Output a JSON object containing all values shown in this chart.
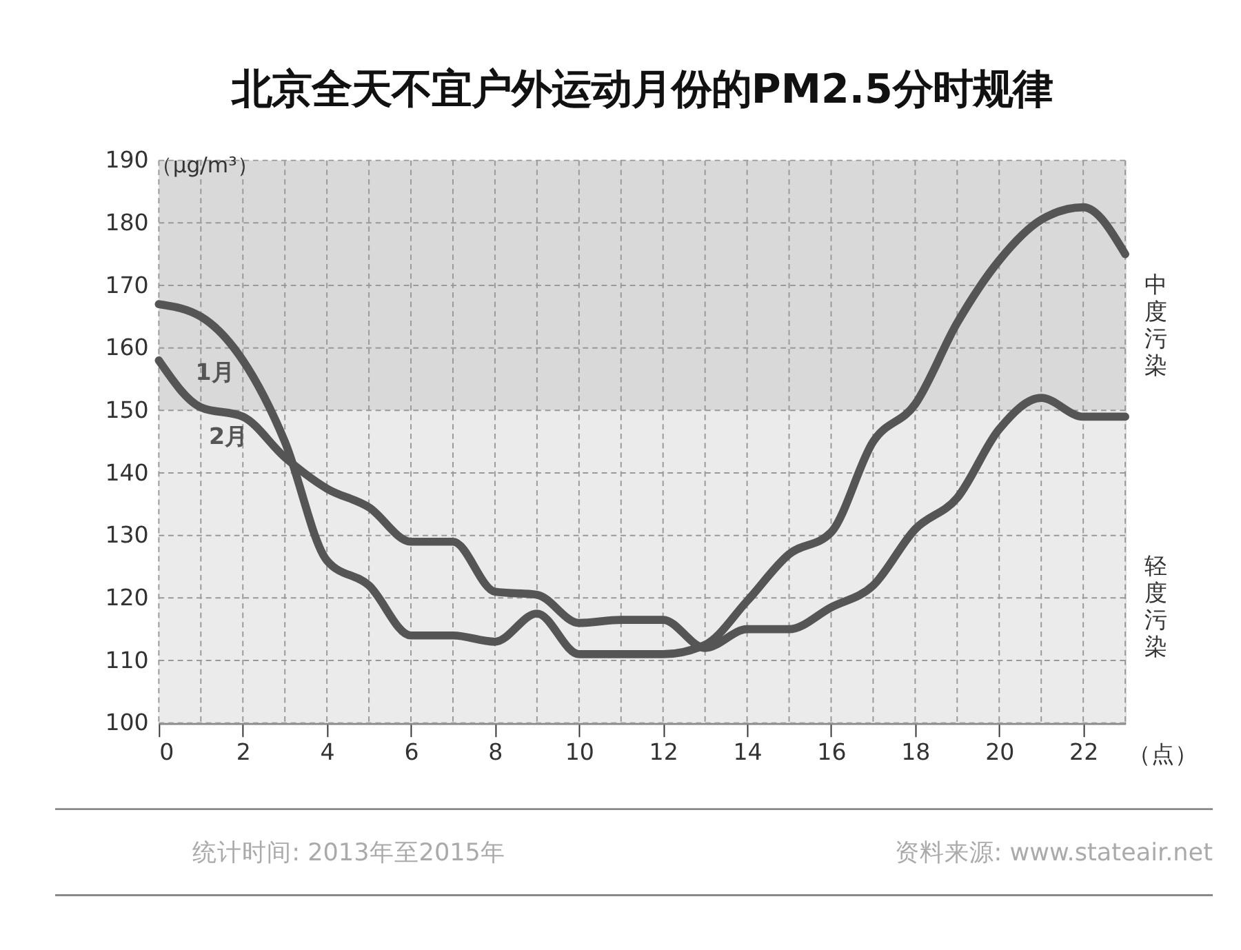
{
  "chart_data": {
    "type": "line",
    "title": "北京全天不宜户外运动月份的PM2.5分时规律",
    "ylabel": "（μg/m³）",
    "xlabel": "（点）",
    "x": [
      0,
      1,
      2,
      3,
      4,
      5,
      6,
      7,
      8,
      9,
      10,
      11,
      12,
      13,
      14,
      15,
      16,
      17,
      18,
      19,
      20,
      21,
      22,
      23
    ],
    "series": [
      {
        "name": "1月",
        "color": "#555555",
        "values": [
          167,
          165,
          158,
          145,
          126,
          122,
          114,
          114,
          113,
          117.5,
          111,
          111,
          111,
          112.5,
          119.5,
          127,
          130.5,
          145,
          151,
          164,
          174,
          180.5,
          182.5,
          175
        ]
      },
      {
        "name": "2月",
        "color": "#555555",
        "values": [
          158,
          150.5,
          149,
          142.5,
          137.5,
          134.5,
          129,
          129,
          121,
          120.5,
          116,
          116.5,
          116.5,
          112,
          115,
          115,
          118.5,
          122,
          131,
          136,
          147,
          152,
          149,
          149
        ]
      }
    ],
    "xlim": [
      0,
      23
    ],
    "ylim": [
      100,
      190
    ],
    "xticks": [
      0,
      {
        "value": 1,
        "label": null
      },
      2,
      {
        "value": 3,
        "label": null
      },
      4,
      {
        "value": 5,
        "label": null
      },
      6,
      {
        "value": 7,
        "label": null
      },
      8,
      {
        "value": 9,
        "label": null
      },
      10,
      {
        "value": 11,
        "label": null
      },
      12,
      {
        "value": 13,
        "label": null
      },
      14,
      {
        "value": 15,
        "label": null
      },
      16,
      {
        "value": 17,
        "label": null
      },
      18,
      {
        "value": 19,
        "label": null
      },
      20,
      {
        "value": 21,
        "label": null
      },
      22,
      {
        "value": 23,
        "label": null
      }
    ],
    "yticks": [
      100,
      110,
      120,
      130,
      140,
      150,
      160,
      170,
      180,
      190
    ],
    "bands": [
      {
        "axis": "y",
        "from": 150,
        "to": 190,
        "label": "中度污染",
        "color": "#d9d9d9"
      },
      {
        "axis": "y",
        "from": 100,
        "to": 150,
        "label": "轻度污染",
        "color": "#ebebeb"
      }
    ],
    "grid": true,
    "legend": false,
    "marker": "none",
    "line_style": "solid",
    "annotations": [
      "统计时间: 2013年至2015年",
      "资料来源: www.stateair.net"
    ]
  }
}
